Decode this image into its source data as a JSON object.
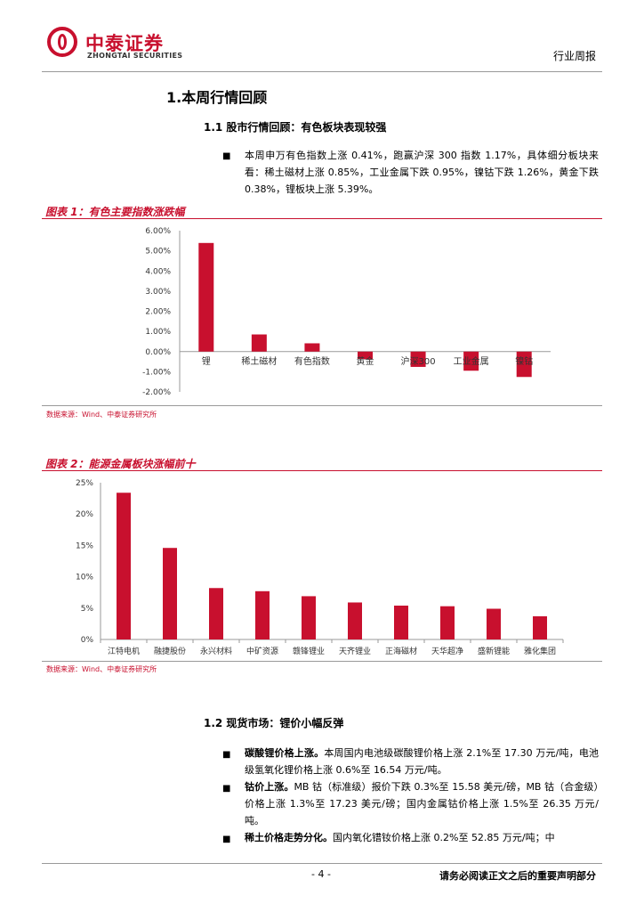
{
  "header": {
    "logo_cn": "中泰证券",
    "logo_en": "ZHONGTAI SECURITIES",
    "report_type": "行业周报"
  },
  "section1": {
    "title": "1.本周行情回顾",
    "sub1_title": "1.1 股市行情回顾：有色板块表现较强",
    "sub1_paragraph": "本周申万有色指数上涨 0.41%，跑赢沪深 300 指数 1.17%，具体细分板块来看：稀土磁材上涨 0.85%，工业金属下跌 0.95%，镍钴下跌 1.26%，黄金下跌 0.38%，锂板块上涨 5.39%。"
  },
  "figure1": {
    "title": "图表 1：有色主要指数涨跌幅",
    "source": "数据来源：Wind、中泰证券研究所"
  },
  "figure2": {
    "title": "图表 2：能源金属板块涨幅前十",
    "source": "数据来源：Wind、中泰证券研究所"
  },
  "chart_data": [
    {
      "type": "bar",
      "categories": [
        "锂",
        "稀土磁材",
        "有色指数",
        "黄金",
        "沪深300",
        "工业金属",
        "镍钴"
      ],
      "values": [
        5.39,
        0.85,
        0.41,
        -0.38,
        -0.76,
        -0.95,
        -1.26
      ],
      "yticks": [
        "6.00%",
        "5.00%",
        "4.00%",
        "3.00%",
        "2.00%",
        "1.00%",
        "0.00%",
        "-1.00%",
        "-2.00%"
      ],
      "ylim": [
        -2,
        6
      ],
      "color": "#c8102e"
    },
    {
      "type": "bar",
      "categories": [
        "江特电机",
        "融捷股份",
        "永兴材料",
        "中矿资源",
        "赣锋锂业",
        "天齐锂业",
        "正海磁材",
        "天华超净",
        "盛新锂能",
        "雅化集团"
      ],
      "values": [
        23.4,
        14.6,
        8.2,
        7.7,
        6.9,
        5.9,
        5.4,
        5.3,
        4.9,
        3.7
      ],
      "yticks": [
        "25%",
        "20%",
        "15%",
        "10%",
        "5%",
        "0%"
      ],
      "ylim": [
        0,
        25
      ],
      "color": "#c8102e"
    }
  ],
  "section2": {
    "sub2_title": "1.2 现货市场：锂价小幅反弹",
    "items": [
      {
        "lead": "碳酸锂价格上涨。",
        "text": "本周国内电池级碳酸锂价格上涨 2.1%至 17.30 万元/吨，电池级氢氧化锂价格上涨 0.6%至 16.54 万元/吨。"
      },
      {
        "lead": "钴价上涨。",
        "text": "MB 钴（标准级）报价下跌 0.3%至 15.58 美元/磅，MB 钴（合金级）价格上涨 1.3%至 17.23 美元/磅；国内金属钴价格上涨 1.5%至 26.35 万元/吨。"
      },
      {
        "lead": "稀土价格走势分化。",
        "text": "国内氧化镨钕价格上涨 0.2%至 52.85 万元/吨；中"
      }
    ]
  },
  "footer": {
    "page": "- 4 -",
    "disclaimer": "请务必阅读正文之后的重要声明部分"
  }
}
